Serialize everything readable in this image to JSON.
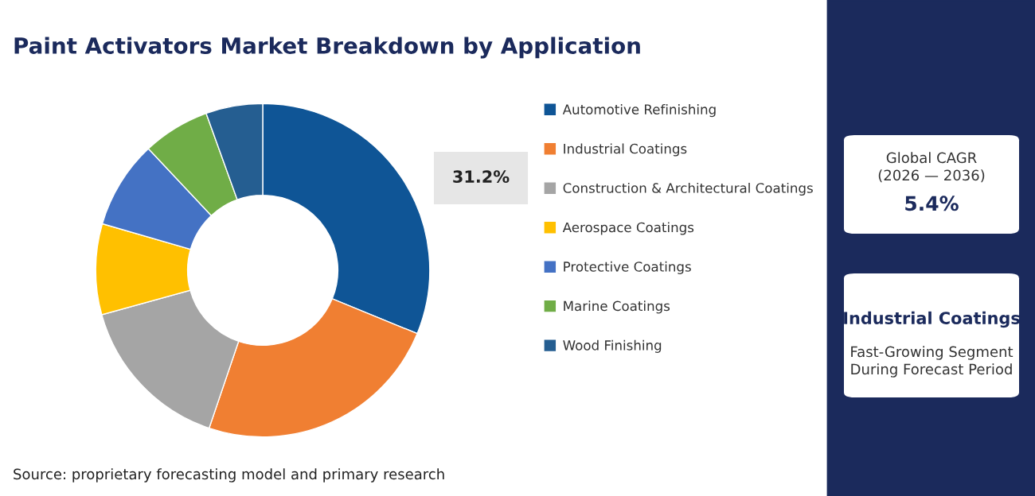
{
  "chart_data": {
    "type": "donut",
    "title": "Paint Activators Market Breakdown by Application",
    "categories": [
      "Automotive Refinishing",
      "Industrial Coatings",
      "Construction & Architectural Coatings",
      "Aerospace Coatings",
      "Protective Coatings",
      "Marine Coatings",
      "Wood Finishing"
    ],
    "values": [
      31.2,
      24.0,
      15.5,
      8.8,
      8.5,
      6.5,
      5.5
    ],
    "colors": [
      "#0f5596",
      "#f07f32",
      "#a5a5a5",
      "#ffc000",
      "#4472c4",
      "#70ad47",
      "#255e91"
    ],
    "value_labels": [
      "31.2%",
      null,
      null,
      null,
      null,
      null,
      null
    ],
    "legend": "right",
    "annotations": [
      "Source: proprietary forecasting model and primary research",
      "Global CAGR",
      "(2026 — 2036)",
      "5.4%",
      "Industrial Coatings",
      "Fast-Growing Segment",
      "During Forecast Period"
    ]
  }
}
